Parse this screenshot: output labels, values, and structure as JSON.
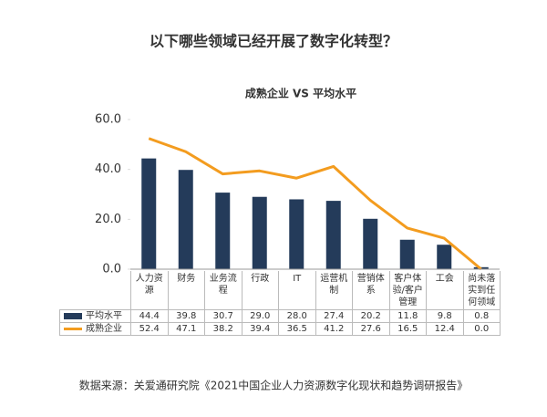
{
  "chart_data": {
    "type": "bar_line",
    "title": "以下哪些领域已经开展了数字化转型？",
    "subtitle": "成熟企业 VS 平均水平",
    "source": "数据来源：关爱通研究院《2021中国企业人力资源数字化现状和趋势调研报告》",
    "categories": [
      "人力资源",
      "财务",
      "业务流程",
      "行政",
      "IT",
      "运营机制",
      "营销体系",
      "客户体验/客户管理",
      "工会",
      "尚未落实到任何领域"
    ],
    "series": [
      {
        "name": "平均水平",
        "type": "bar",
        "color": "#243b5a",
        "values": [
          44.4,
          39.8,
          30.7,
          29,
          28,
          27.4,
          20.2,
          11.8,
          9.8,
          0.8
        ],
        "value_labels": [
          "44.4",
          "39.8",
          "30.7",
          "29.0",
          "28.0",
          "27.4",
          "20.2",
          "11.8",
          "9.8",
          "0.8"
        ]
      },
      {
        "name": "成熟企业",
        "type": "line",
        "color": "#f39c1f",
        "values": [
          52.4,
          47.1,
          38.2,
          39.4,
          36.5,
          41.2,
          27.6,
          16.5,
          12.4,
          0
        ],
        "value_labels": [
          "52.4",
          "47.1",
          "38.2",
          "39.4",
          "36.5",
          "41.2",
          "27.6",
          "16.5",
          "12.4",
          "0.0"
        ]
      }
    ],
    "ylim": [
      0,
      60
    ],
    "yticks": [
      {
        "value": 0,
        "label": "0.0"
      },
      {
        "value": 20,
        "label": "20.0"
      },
      {
        "value": 40,
        "label": "40.0"
      },
      {
        "value": 60,
        "label": "60.0"
      }
    ],
    "grid": false
  }
}
